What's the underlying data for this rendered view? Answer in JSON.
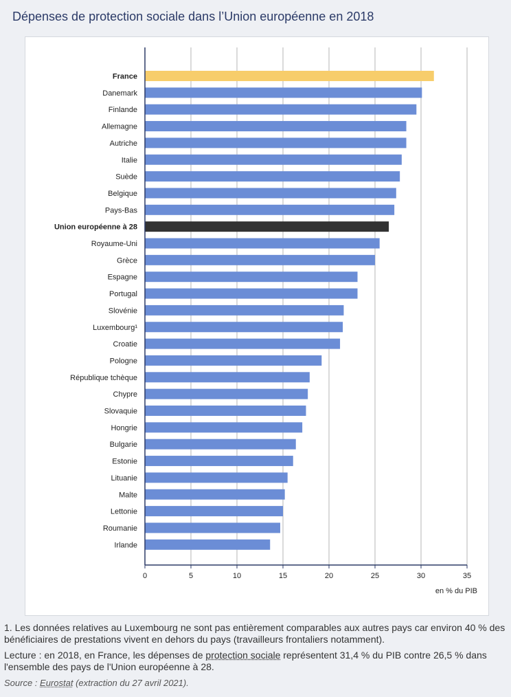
{
  "title": "Dépenses de protection sociale dans l’Union européenne en 2018",
  "chart_data": {
    "type": "bar",
    "orientation": "horizontal",
    "categories": [
      "France",
      "Danemark",
      "Finlande",
      "Allemagne",
      "Autriche",
      "Italie",
      "Suède",
      "Belgique",
      "Pays-Bas",
      "Union européenne à 28",
      "Royaume-Uni",
      "Grèce",
      "Espagne",
      "Portugal",
      "Slovénie",
      "Luxembourg¹",
      "Croatie",
      "Pologne",
      "République tchèque",
      "Chypre",
      "Slovaquie",
      "Hongrie",
      "Bulgarie",
      "Estonie",
      "Lituanie",
      "Malte",
      "Lettonie",
      "Roumanie",
      "Irlande"
    ],
    "values": [
      31.4,
      30.1,
      29.5,
      28.4,
      28.4,
      27.9,
      27.7,
      27.3,
      27.1,
      26.5,
      25.5,
      25.0,
      23.1,
      23.1,
      21.6,
      21.5,
      21.2,
      19.2,
      17.9,
      17.7,
      17.5,
      17.1,
      16.4,
      16.1,
      15.5,
      15.2,
      15.0,
      14.7,
      13.6
    ],
    "highlight": {
      "France": "#f7cd6b",
      "Union européenne à 28": "#333333"
    },
    "bold_categories": [
      "France",
      "Union européenne à 28"
    ],
    "bar_color": "#6b8dd6",
    "xlim": [
      0,
      35
    ],
    "xticks": [
      0,
      5,
      10,
      15,
      20,
      25,
      30,
      35
    ],
    "xlabel": "en % du PIB",
    "grid": true
  },
  "notes": {
    "note1": "1. Les données relatives au Luxembourg ne sont pas entièrement comparables aux autres pays car environ 40 % des bénéficiaires de prestations vivent en dehors du pays (travailleurs frontaliers notamment).",
    "reading_prefix": "Lecture : en 2018, en France, les dépenses de ",
    "reading_link": "protection sociale",
    "reading_suffix": " représentent 31,4 % du PIB contre 26,5 % dans l'ensemble des pays de l'Union européenne à 28.",
    "source_prefix": "Source : ",
    "source_link": "Eurostat",
    "source_suffix": " (extraction du 27 avril 2021)."
  }
}
